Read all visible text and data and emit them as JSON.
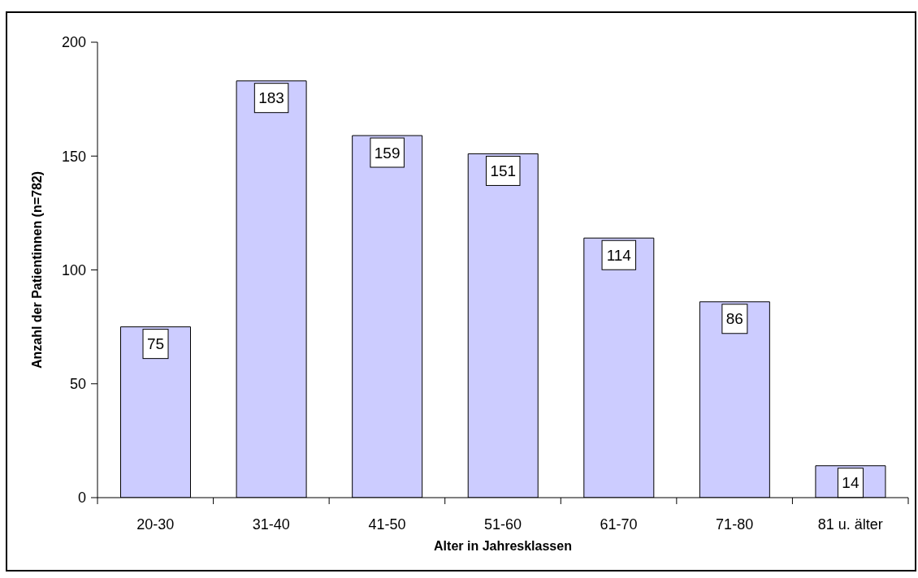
{
  "chart_data": {
    "type": "bar",
    "xlabel": "Alter in Jahresklassen",
    "ylabel": "Anzahl der Patientinnen (n=782)",
    "categories": [
      "20-30",
      "31-40",
      "41-50",
      "51-60",
      "61-70",
      "71-80",
      "81 u. älter"
    ],
    "values": [
      75,
      183,
      159,
      151,
      114,
      86,
      14
    ],
    "color": "#ccccff",
    "ylim": [
      0,
      200
    ],
    "yticks": [
      0,
      50,
      100,
      150,
      200
    ],
    "data_labels": true
  }
}
